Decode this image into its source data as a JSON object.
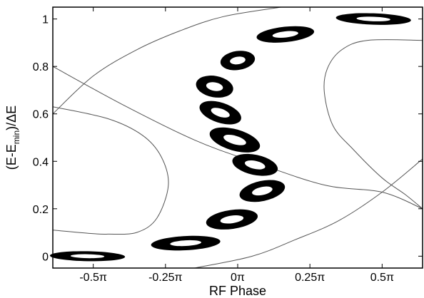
{
  "chart_data": {
    "type": "scatter",
    "title": "",
    "xlabel": "RF Phase",
    "ylabel": "(E-E_min)/ΔE",
    "ylabel_parts": {
      "pre": "(E-E",
      "sub": "min",
      "post": ")/ΔE"
    },
    "xlim": [
      -0.64,
      0.64
    ],
    "ylim": [
      -0.05,
      1.05
    ],
    "x_unit": "π",
    "x_ticks": [
      {
        "value": -0.5,
        "label": "-0.5π"
      },
      {
        "value": -0.25,
        "label": "-0.25π"
      },
      {
        "value": 0,
        "label": "0π"
      },
      {
        "value": 0.25,
        "label": "0.25π"
      },
      {
        "value": 0.5,
        "label": "0.5π"
      }
    ],
    "y_ticks": [
      {
        "value": 0,
        "label": "0"
      },
      {
        "value": 0.2,
        "label": "0.2"
      },
      {
        "value": 0.4,
        "label": "0.4"
      },
      {
        "value": 0.6,
        "label": "0.6"
      },
      {
        "value": 0.8,
        "label": "0.8"
      },
      {
        "value": 1,
        "label": "1"
      }
    ],
    "grid": false,
    "bunch_color": "#000000",
    "line_color": "#555555",
    "bunches": [
      {
        "x": -0.52,
        "y": 0.0,
        "w": 0.26,
        "h": 0.042,
        "tilt": -1
      },
      {
        "x": -0.18,
        "y": 0.055,
        "w": 0.24,
        "h": 0.06,
        "tilt": 3
      },
      {
        "x": -0.02,
        "y": 0.155,
        "w": 0.18,
        "h": 0.08,
        "tilt": 8
      },
      {
        "x": 0.085,
        "y": 0.275,
        "w": 0.16,
        "h": 0.085,
        "tilt": 12
      },
      {
        "x": 0.06,
        "y": 0.385,
        "w": 0.16,
        "h": 0.085,
        "tilt": -12
      },
      {
        "x": -0.01,
        "y": 0.49,
        "w": 0.18,
        "h": 0.09,
        "tilt": -16
      },
      {
        "x": -0.06,
        "y": 0.605,
        "w": 0.15,
        "h": 0.085,
        "tilt": -18
      },
      {
        "x": -0.08,
        "y": 0.715,
        "w": 0.13,
        "h": 0.09,
        "tilt": -10
      },
      {
        "x": 0.0,
        "y": 0.825,
        "w": 0.12,
        "h": 0.08,
        "tilt": 8
      },
      {
        "x": 0.165,
        "y": 0.935,
        "w": 0.2,
        "h": 0.065,
        "tilt": 6
      },
      {
        "x": 0.47,
        "y": 1.0,
        "w": 0.26,
        "h": 0.048,
        "tilt": -2
      }
    ],
    "curves": [
      {
        "name": "",
        "points": [
          [
            -0.64,
            0.6
          ],
          [
            -0.5,
            0.76
          ],
          [
            -0.35,
            0.87
          ],
          [
            -0.2,
            0.95
          ],
          [
            -0.05,
            1.01
          ],
          [
            0.15,
            1.05
          ]
        ]
      },
      {
        "name": "",
        "points": [
          [
            -0.64,
            0.8
          ],
          [
            -0.4,
            0.64
          ],
          [
            -0.15,
            0.49
          ],
          [
            0.05,
            0.4
          ],
          [
            0.3,
            0.3
          ],
          [
            0.5,
            0.27
          ],
          [
            0.64,
            0.2
          ]
        ]
      },
      {
        "name": "",
        "points": [
          [
            -0.64,
            0.11
          ],
          [
            -0.5,
            0.095
          ],
          [
            -0.45,
            0.093
          ],
          [
            -0.35,
            0.1
          ],
          [
            -0.28,
            0.16
          ],
          [
            -0.24,
            0.3
          ],
          [
            -0.265,
            0.42
          ],
          [
            -0.33,
            0.51
          ],
          [
            -0.45,
            0.58
          ],
          [
            -0.64,
            0.63
          ]
        ]
      },
      {
        "name": "",
        "points": [
          [
            -0.15,
            -0.05
          ],
          [
            0.05,
            0.0
          ],
          [
            0.2,
            0.07
          ],
          [
            0.35,
            0.15
          ],
          [
            0.5,
            0.27
          ],
          [
            0.64,
            0.41
          ]
        ]
      },
      {
        "name": "",
        "points": [
          [
            0.64,
            0.91
          ],
          [
            0.45,
            0.91
          ],
          [
            0.36,
            0.87
          ],
          [
            0.31,
            0.79
          ],
          [
            0.3,
            0.69
          ],
          [
            0.33,
            0.55
          ],
          [
            0.4,
            0.45
          ],
          [
            0.5,
            0.33
          ],
          [
            0.58,
            0.26
          ],
          [
            0.64,
            0.2
          ]
        ]
      }
    ]
  }
}
